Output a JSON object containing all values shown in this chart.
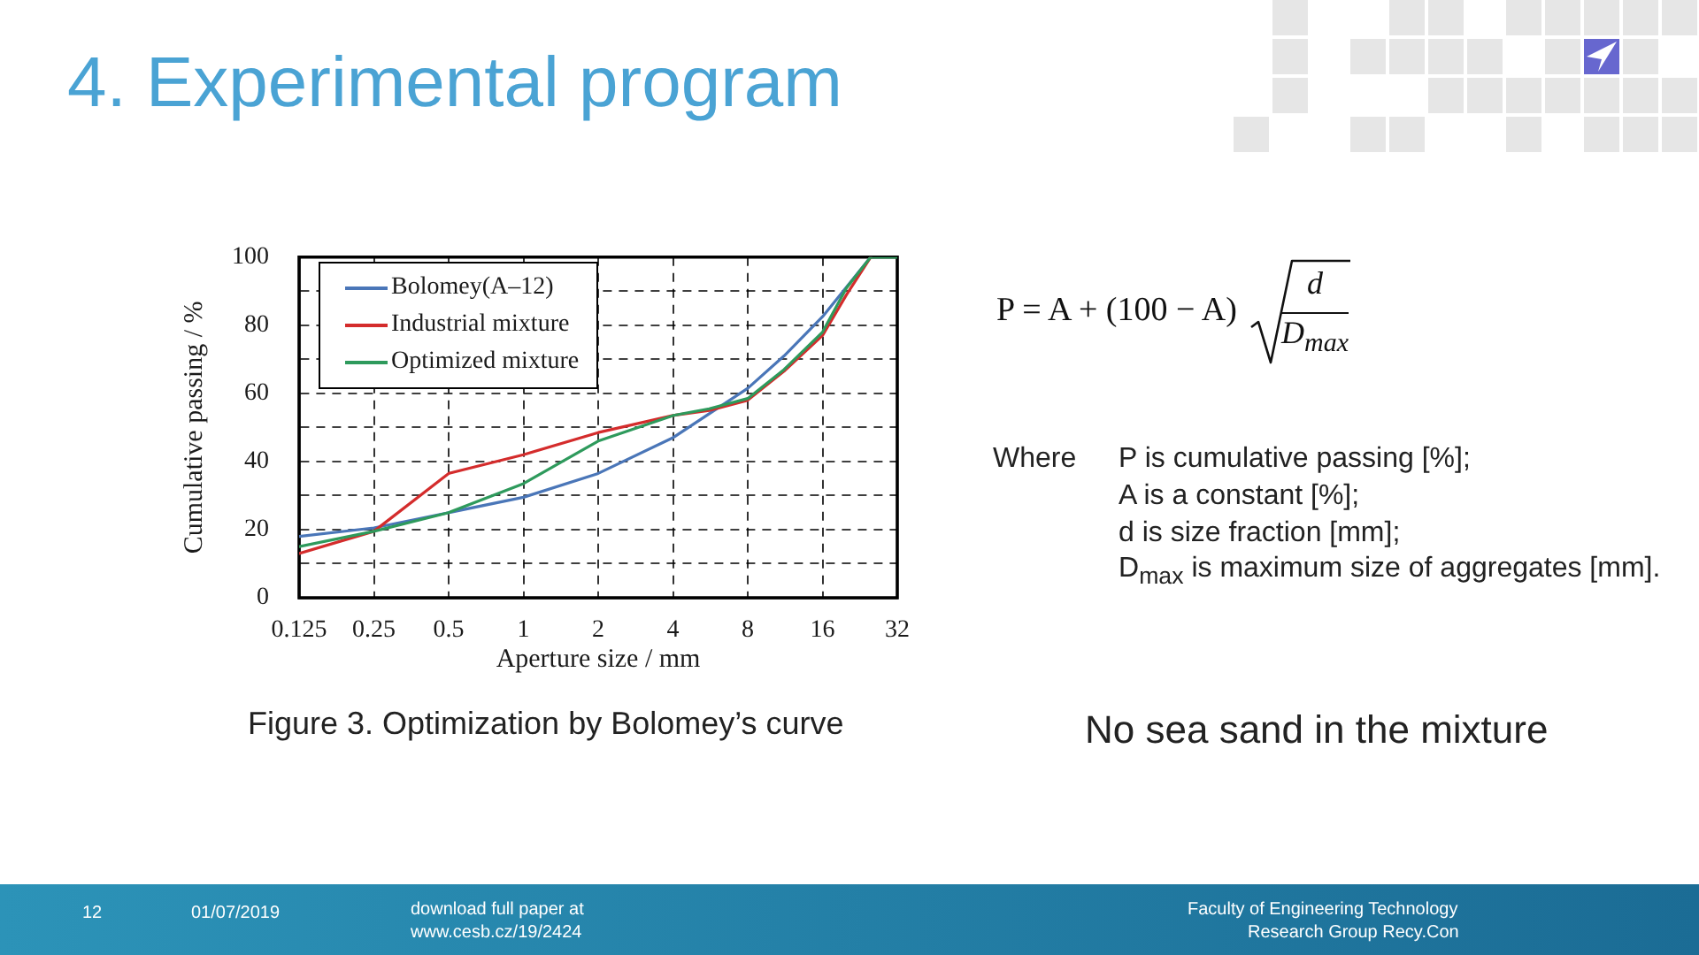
{
  "chart_data": {
    "type": "line",
    "title": "4. Experimental program",
    "xlabel": "Aperture size / mm",
    "ylabel": "Cumulative passing / %",
    "log": "x",
    "xlim": [
      0.125,
      32
    ],
    "xticks": [
      0.125,
      0.25,
      0.5,
      1,
      2,
      4,
      8,
      16,
      32
    ],
    "ylim": [
      0,
      100
    ],
    "yticks": [
      0,
      {
        "value": 10,
        "label": null
      },
      20,
      {
        "value": 30,
        "label": null
      },
      40,
      {
        "value": 50,
        "label": null
      },
      60,
      {
        "value": 70,
        "label": null
      },
      80,
      {
        "value": 90,
        "label": null
      },
      100
    ],
    "grid": true,
    "legend": "top left",
    "marker": "none",
    "line_style": "solid",
    "series": [
      {
        "name": "Bolomey(A–12)",
        "color": "#4a76b8",
        "x": [
          0.125,
          0.25,
          0.5,
          1,
          2,
          4,
          8,
          11.2,
          16,
          25
        ],
        "values": [
          18,
          20.5,
          25,
          29.5,
          36.5,
          47,
          61.5,
          71,
          82.5,
          100
        ]
      },
      {
        "name": "Industrial mixture",
        "color": "#d42c2c",
        "x": [
          0.125,
          0.25,
          0.5,
          1,
          2,
          4,
          5.6,
          8,
          11.2,
          16,
          20,
          25
        ],
        "values": [
          13,
          19.5,
          36.5,
          42,
          48.5,
          53.5,
          55,
          58,
          66.5,
          77,
          89,
          100
        ]
      },
      {
        "name": "Optimized mixture",
        "color": "#2e9a5c",
        "x": [
          0.125,
          0.25,
          0.5,
          1,
          2,
          4,
          5.6,
          8,
          11.2,
          16,
          20,
          25,
          32
        ],
        "values": [
          15,
          19.5,
          25,
          33.5,
          46,
          53.5,
          55.5,
          58.5,
          67,
          78,
          91,
          100,
          100
        ]
      }
    ],
    "annotations": [
      "Figure 3. Optimization by Bolomey’s curve",
      "P = A + (100 − A)",
      "d",
      "D$_{max}$",
      "Where",
      "P is cumulative passing [%];",
      "A is a constant [%];",
      "d is size fraction [mm];",
      "D$_{max}$ is maximum size of aggregates [mm].",
      "No sea sand in the mixture",
      "12",
      "01/07/2019",
      "download full paper at",
      "www.cesb.cz/19/2424",
      "Faculty of Engineering Technology",
      "Research Group Recy.Con"
    ]
  }
}
